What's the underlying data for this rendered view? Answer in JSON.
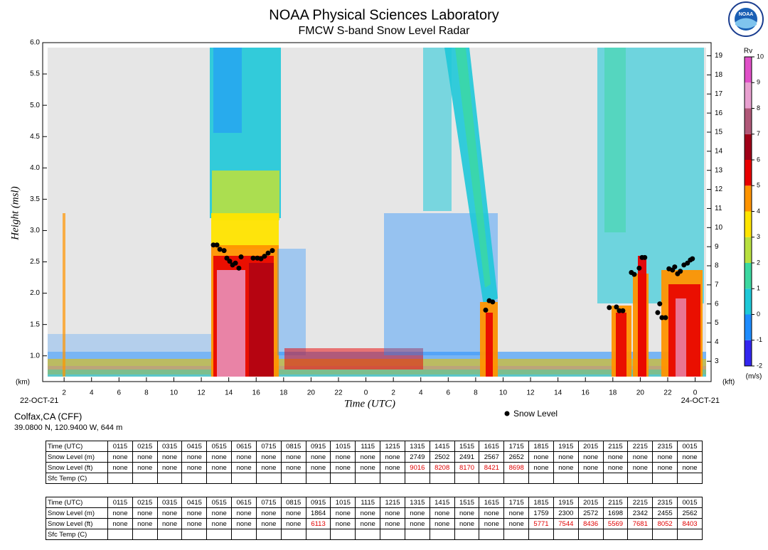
{
  "chart_data": {
    "type": "scatter",
    "title": "NOAA Physical Sciences Laboratory",
    "subtitle": "FMCW S-band Snow Level Radar",
    "logo_text": "NOAA",
    "y_label": "Height (msl)",
    "x_label": "Time (UTC)",
    "y_unit": "(km)",
    "y2_unit": "(kft)",
    "date_start": "22-OCT-21",
    "date_end": "24-OCT-21",
    "xlim": [
      0.8,
      48.8
    ],
    "xticks": [
      2,
      4,
      6,
      8,
      10,
      12,
      14,
      16,
      18,
      20,
      22,
      {
        "value": 24,
        "label": "0"
      },
      {
        "value": 26,
        "label": "2"
      },
      {
        "value": 28,
        "label": "4"
      },
      {
        "value": 30,
        "label": "6"
      },
      {
        "value": 32,
        "label": "8"
      },
      {
        "value": 34,
        "label": "10"
      },
      {
        "value": 36,
        "label": "12"
      },
      {
        "value": 38,
        "label": "14"
      },
      {
        "value": 40,
        "label": "16"
      },
      {
        "value": 42,
        "label": "18"
      },
      {
        "value": 44,
        "label": "20"
      },
      {
        "value": 46,
        "label": "22"
      },
      {
        "value": 48,
        "label": "0"
      }
    ],
    "ylim": [
      0.6,
      6.0
    ],
    "yticks": [
      {
        "value": 1,
        "label": "1.0"
      },
      1.5,
      {
        "value": 2,
        "label": "2.0"
      },
      2.5,
      {
        "value": 3,
        "label": "3.0"
      },
      3.5,
      {
        "value": 4,
        "label": "4.0"
      },
      4.5,
      {
        "value": 5,
        "label": "5.0"
      },
      5.5,
      {
        "value": 6,
        "label": "6.0"
      }
    ],
    "y2lim": [
      1.97,
      19.69
    ],
    "y2ticks": [
      3,
      4,
      5,
      6,
      7,
      8,
      9,
      10,
      11,
      12,
      13,
      14,
      15,
      16,
      17,
      18,
      19
    ],
    "series": [
      {
        "name": "Snow Level",
        "color": "#000000",
        "x": [
          12.88,
          13.14,
          13.35,
          13.66,
          13.86,
          14.07,
          14.28,
          14.49,
          14.74,
          14.9,
          15.78,
          16.09,
          16.35,
          16.61,
          16.87,
          17.18,
          32.73,
          32.99,
          33.24,
          41.74,
          42.26,
          42.47,
          42.73,
          43.35,
          43.56,
          43.92,
          44.13,
          44.33,
          45.27,
          45.42,
          45.58,
          45.84,
          46.09,
          46.35,
          46.51,
          46.72,
          46.92,
          47.18,
          47.44,
          47.65,
          47.8
        ],
        "values": [
          2.77,
          2.77,
          2.7,
          2.68,
          2.56,
          2.51,
          2.45,
          2.48,
          2.4,
          2.58,
          2.56,
          2.56,
          2.55,
          2.59,
          2.64,
          2.68,
          1.73,
          1.88,
          1.86,
          1.77,
          1.78,
          1.72,
          1.72,
          2.33,
          2.3,
          2.4,
          2.57,
          2.57,
          1.69,
          1.83,
          1.61,
          1.61,
          2.39,
          2.37,
          2.42,
          2.31,
          2.35,
          2.45,
          2.48,
          2.53,
          2.55
        ]
      }
    ],
    "colorbar": {
      "label": "Rv",
      "unit": "(m/s)",
      "ticks": [
        -2,
        -1,
        0,
        1,
        2,
        3,
        4,
        5,
        6,
        7,
        8,
        9,
        10
      ],
      "colors": [
        "#3326f0",
        "#1e8cff",
        "#1ec8d8",
        "#3cd8a0",
        "#b8e040",
        "#ffe400",
        "#ff9400",
        "#e80000",
        "#a00018",
        "#b05878",
        "#e8a0d0",
        "#e050c8",
        "#9c0098"
      ]
    }
  },
  "site": {
    "name": "Colfax,CA (CFF)",
    "location": "39.0800 N, 120.9400 W, 644 m"
  },
  "tables": [
    {
      "rows": [
        [
          "Time (UTC)",
          "0115",
          "0215",
          "0315",
          "0415",
          "0515",
          "0615",
          "0715",
          "0815",
          "0915",
          "1015",
          "1115",
          "1215",
          "1315",
          "1415",
          "1515",
          "1615",
          "1715",
          "1815",
          "1915",
          "2015",
          "2115",
          "2215",
          "2315",
          "0015"
        ],
        [
          "Snow Level (m)",
          "none",
          "none",
          "none",
          "none",
          "none",
          "none",
          "none",
          "none",
          "none",
          "none",
          "none",
          "none",
          2749,
          2502,
          2491,
          2567,
          2652,
          "none",
          "none",
          "none",
          "none",
          "none",
          "none",
          "none"
        ],
        [
          "Snow Level (ft)",
          "none",
          "none",
          "none",
          "none",
          "none",
          "none",
          "none",
          "none",
          "none",
          "none",
          "none",
          "none",
          9016,
          8208,
          8170,
          8421,
          8698,
          "none",
          "none",
          "none",
          "none",
          "none",
          "none",
          "none"
        ],
        [
          "Sfc Temp (C)"
        ]
      ]
    },
    {
      "rows": [
        [
          "Time (UTC)",
          "0115",
          "0215",
          "0315",
          "0415",
          "0515",
          "0615",
          "0715",
          "0815",
          "0915",
          "1015",
          "1115",
          "1215",
          "1315",
          "1415",
          "1515",
          "1615",
          "1715",
          "1815",
          "1915",
          "2015",
          "2115",
          "2215",
          "2315",
          "0015"
        ],
        [
          "Snow Level (m)",
          "none",
          "none",
          "none",
          "none",
          "none",
          "none",
          "none",
          "none",
          1864,
          "none",
          "none",
          "none",
          "none",
          "none",
          "none",
          "none",
          "none",
          1759,
          2300,
          2572,
          1698,
          2342,
          2455,
          2562
        ],
        [
          "Snow Level (ft)",
          "none",
          "none",
          "none",
          "none",
          "none",
          "none",
          "none",
          "none",
          6113,
          "none",
          "none",
          "none",
          "none",
          "none",
          "none",
          "none",
          "none",
          5771,
          7544,
          8436,
          5569,
          7681,
          8052,
          8403
        ],
        [
          "Sfc Temp (C)"
        ]
      ]
    }
  ]
}
